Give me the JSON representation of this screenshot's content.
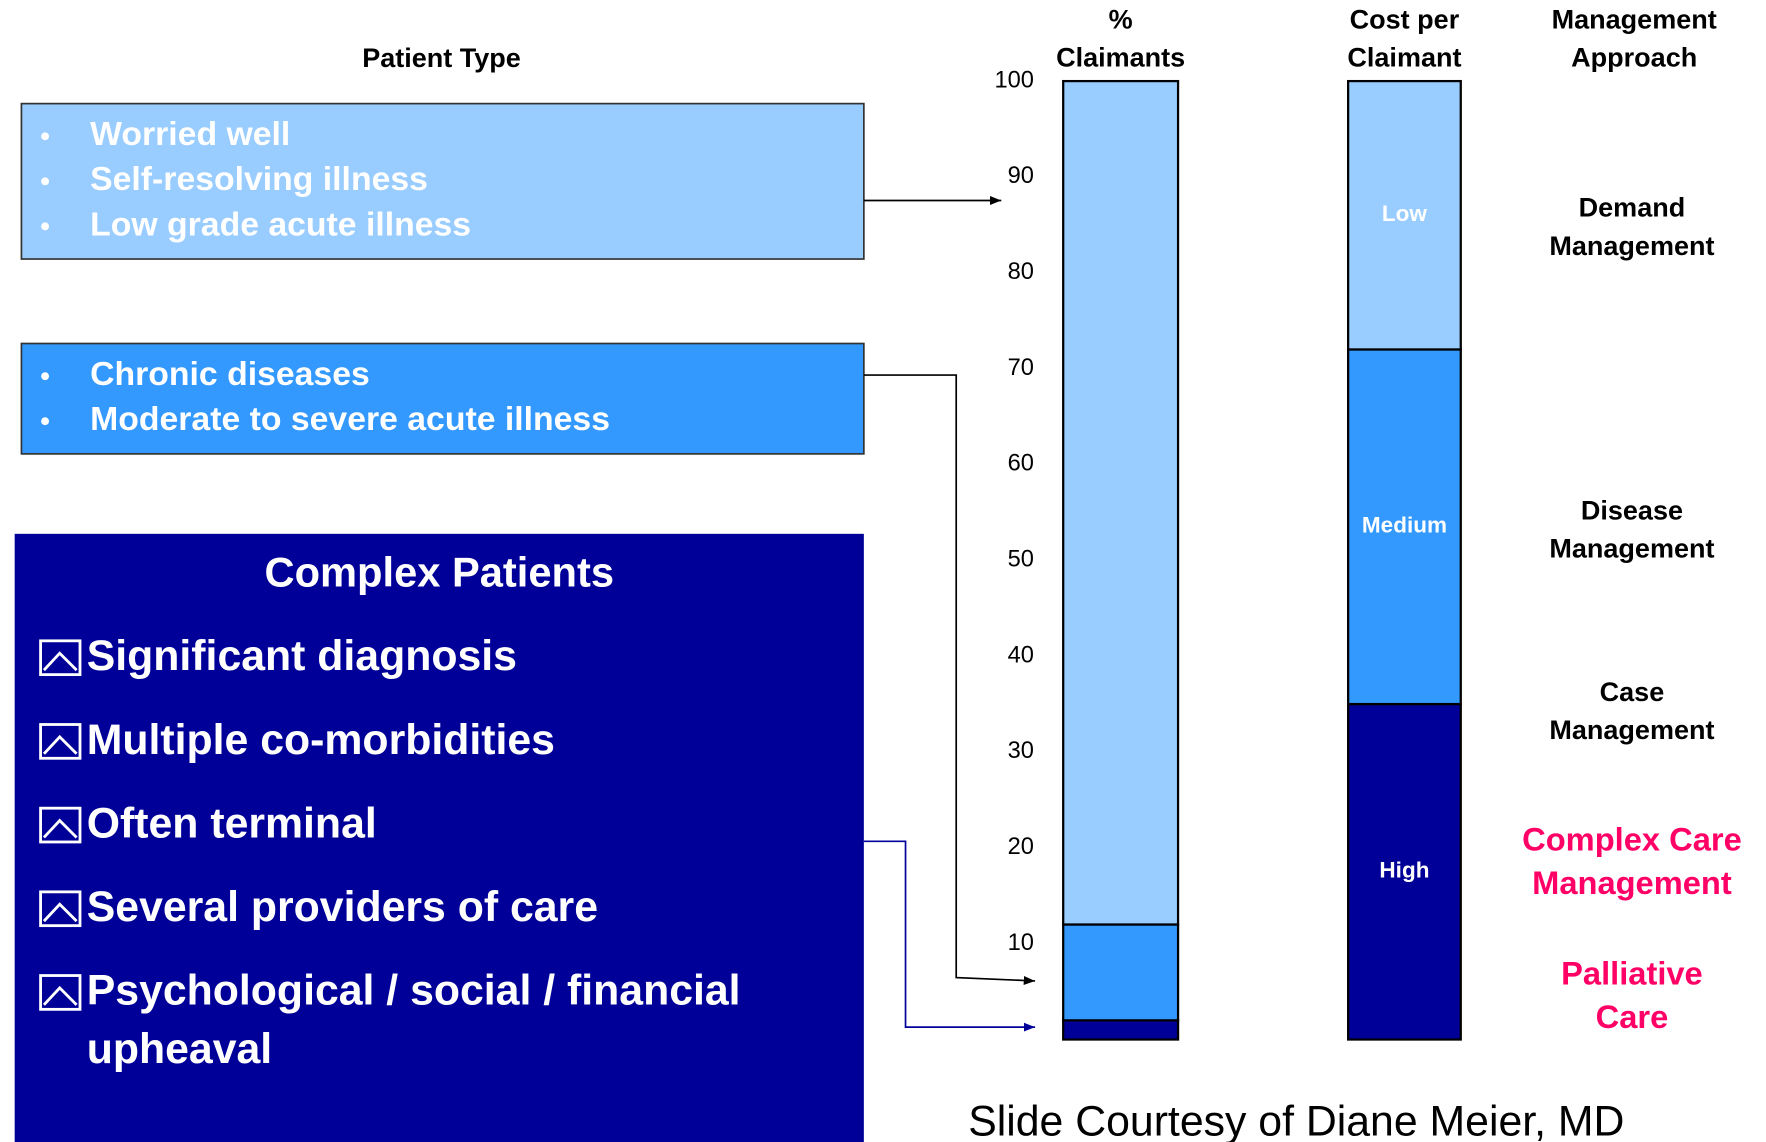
{
  "patient_type": {
    "heading": "Patient Type",
    "groups": [
      {
        "items": [
          "Worried well",
          "Self-resolving illness",
          "Low grade acute illness"
        ]
      },
      {
        "items": [
          "Chronic diseases",
          "Moderate to severe acute illness"
        ]
      }
    ],
    "complex": {
      "title": "Complex Patients",
      "items": [
        "Significant diagnosis",
        "Multiple co-morbidities",
        "Often terminal",
        "Several providers of care",
        "Psychological / social / financial\nupheaval"
      ]
    }
  },
  "chart_data": {
    "type": "stacked_bar",
    "ylim": [
      0,
      100
    ],
    "yticks": [
      10,
      20,
      30,
      40,
      50,
      60,
      70,
      80,
      90,
      100
    ],
    "bars": [
      {
        "heading": "%\nClaimants",
        "segments": [
          {
            "color": "#000099",
            "value": 2
          },
          {
            "color": "#3399ff",
            "value": 10
          },
          {
            "color": "#99ccff",
            "value": 88
          }
        ]
      },
      {
        "heading": "Cost per\nClaimant",
        "segments": [
          {
            "color": "#000099",
            "value": 35,
            "label": "High"
          },
          {
            "color": "#3399ff",
            "value": 37,
            "label": "Medium"
          },
          {
            "color": "#99ccff",
            "value": 28,
            "label": "Low"
          }
        ]
      }
    ]
  },
  "management": {
    "heading": "Management\nApproach",
    "items": [
      {
        "text": "Demand\nManagement",
        "color": "#000000"
      },
      {
        "text": "Disease\nManagement",
        "color": "#000000"
      },
      {
        "text": "Case\nManagement",
        "color": "#000000"
      },
      {
        "text": "Complex Care\nManagement",
        "color": "#ff0066"
      },
      {
        "text": "Palliative\nCare",
        "color": "#ff0066"
      }
    ]
  },
  "credit": "Slide Courtesy of Diane Meier, MD"
}
